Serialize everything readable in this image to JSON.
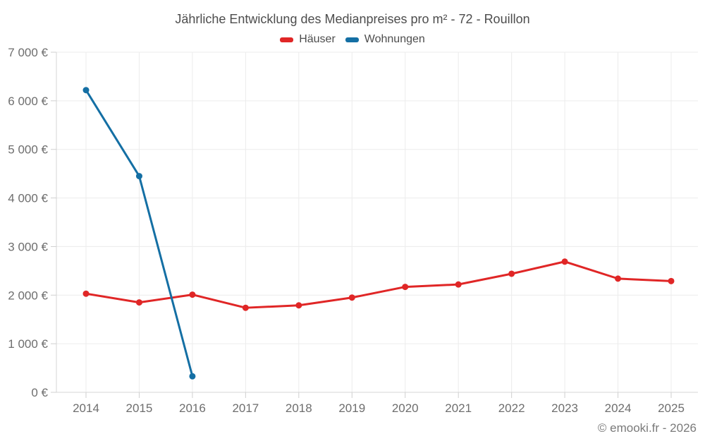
{
  "footer": {
    "copyright": "© emooki.fr - 2026"
  },
  "chart_data": {
    "type": "line",
    "title": "Jährliche Entwicklung des Medianpreises pro m² - 72 - Rouillon",
    "categories": [
      "2014",
      "2015",
      "2016",
      "2017",
      "2018",
      "2019",
      "2020",
      "2021",
      "2022",
      "2023",
      "2024",
      "2025"
    ],
    "series": [
      {
        "name": "Häuser",
        "color": "#e02626",
        "values": [
          2030,
          1850,
          2010,
          1740,
          1790,
          1950,
          2170,
          2220,
          2440,
          2690,
          2340,
          2290
        ]
      },
      {
        "name": "Wohnungen",
        "color": "#146fa4",
        "values": [
          6220,
          4450,
          330,
          null,
          null,
          null,
          null,
          null,
          null,
          null,
          null,
          null
        ]
      }
    ],
    "ylabel": "",
    "xlabel": "",
    "ylim": [
      0,
      7000
    ],
    "ytick_step": 1000,
    "ytick_labels": [
      "0 €",
      "1 000 €",
      "2 000 €",
      "3 000 €",
      "4 000 €",
      "5 000 €",
      "6 000 €",
      "7 000 €"
    ],
    "grid": true,
    "legend_position": "top",
    "currency": "€"
  }
}
